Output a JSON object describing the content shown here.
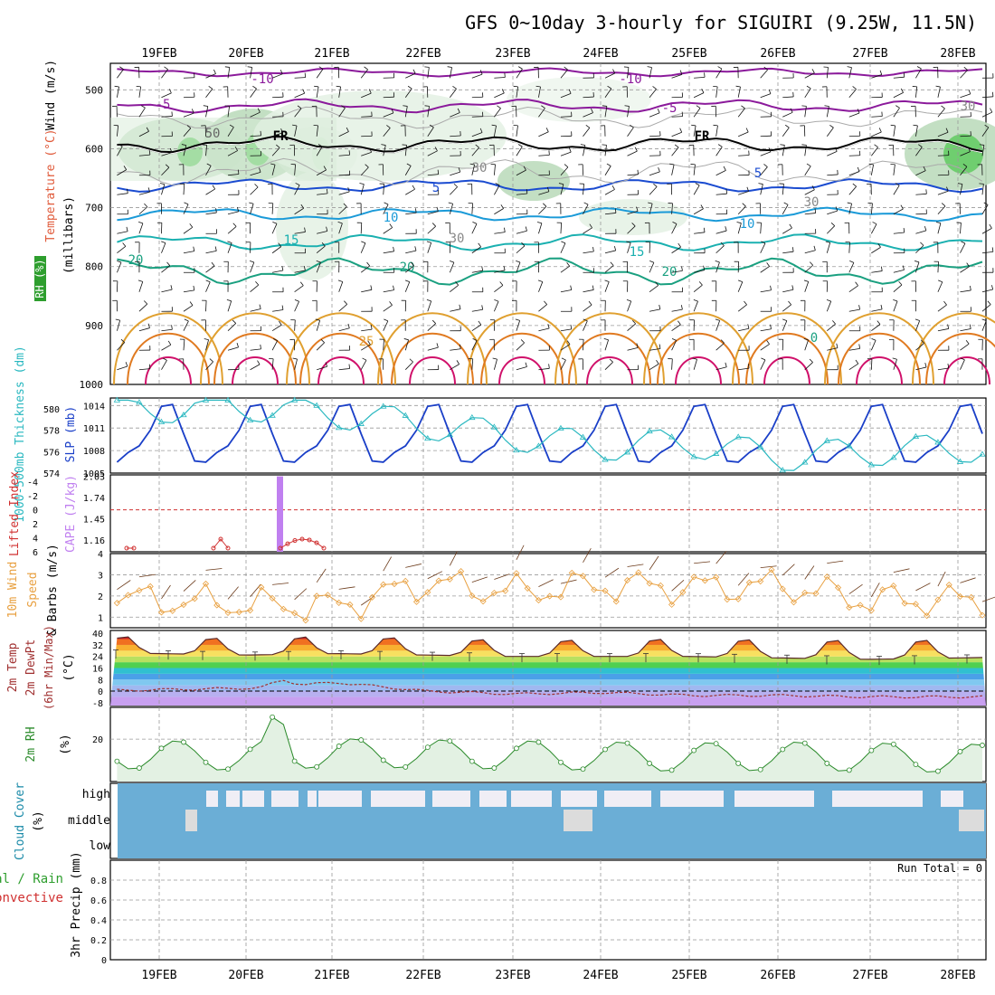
{
  "title": "GFS 0~10day 3-hourly for SIGUIRI (9.25W, 11.5N)",
  "dates": [
    "19FEB",
    "20FEB",
    "21FEB",
    "22FEB",
    "23FEB",
    "24FEB",
    "25FEB",
    "26FEB",
    "27FEB",
    "28FEB"
  ],
  "panels": {
    "upper": {
      "ylabel_parts": [
        {
          "text": "Wind (m/s)",
          "color": "#000000"
        },
        {
          "text": "Temperature (°C)",
          "color": "#e05a3a"
        },
        {
          "text": "RH (%)",
          "color": "#2e8b2e"
        }
      ],
      "ylabel2": "(millibars)",
      "yticks": [
        "500",
        "600",
        "700",
        "800",
        "900",
        "1000"
      ],
      "contour_labels": [
        {
          "text": "-10",
          "color": "#8b1a9b"
        },
        {
          "text": "-5",
          "color": "#8b1a9b"
        },
        {
          "text": "FR",
          "color": "#000000"
        },
        {
          "text": "5",
          "color": "#1a4bd0"
        },
        {
          "text": "10",
          "color": "#1a9ad8"
        },
        {
          "text": "15",
          "color": "#1ab0b0"
        },
        {
          "text": "20",
          "color": "#1aa080"
        },
        {
          "text": "25",
          "color": "#e0a030"
        },
        {
          "text": "30",
          "color": "#888888"
        },
        {
          "text": "50",
          "color": "#666666"
        },
        {
          "text": "0",
          "color": "#1aa080"
        }
      ]
    },
    "slp": {
      "ylabel_left": "1000-500mb Thickness (dm)",
      "ylabel_right": "SLP (mb)",
      "yticks_left": [
        "574",
        "576",
        "578",
        "580"
      ],
      "yticks_right": [
        "1005",
        "1008",
        "1011",
        "1014"
      ]
    },
    "cape": {
      "ylabel_left": "Lifted Index",
      "ylabel_right": "CAPE (J/kg)",
      "yticks_left": [
        "-4",
        "-2",
        "0",
        "2",
        "4",
        "6"
      ],
      "yticks_right": [
        "1.16",
        "1.45",
        "1.74",
        "2.03"
      ]
    },
    "wind10": {
      "ylabel_1": "10m Wind",
      "ylabel_2": "Speed",
      "ylabel_3": "& Barbs",
      "ylabel_unit": "(m/s)",
      "yticks": [
        "1",
        "2",
        "3",
        "4"
      ]
    },
    "temp2m": {
      "ylabel_1": "2m Temp",
      "ylabel_2": "2m DewPt",
      "ylabel_3": "(6hr Min/Max)",
      "ylabel_unit": "(°C)",
      "yticks": [
        "-8",
        "0",
        "8",
        "16",
        "24",
        "32",
        "40"
      ]
    },
    "rh2m": {
      "ylabel": "2m RH",
      "ylabel_unit": "(%)",
      "yticks": [
        "20"
      ]
    },
    "cloud": {
      "ylabel": "Cloud Cover",
      "ylabel_unit": "(%)",
      "levels": [
        "high",
        "middle",
        "low"
      ]
    },
    "precip": {
      "ylabel_1": "Total / Rain",
      "ylabel_2": "Convective",
      "ylabel_3": "3hr Precip (mm)",
      "yticks": [
        "0",
        "0.2",
        "0.4",
        "0.6",
        "0.8"
      ],
      "run_total": "Run Total = 0"
    }
  },
  "colors": {
    "slp": "#1a3fc8",
    "thickness": "#2ab8c0",
    "li": "#d03030",
    "cape": "#c080f0",
    "wind_speed": "#e8a040",
    "rh": "#2a8a2a",
    "cloud": "#6baed6",
    "cloud_clear": "#f0eef5"
  },
  "chart_data": [
    {
      "type": "line",
      "title": "1000-500mb Thickness (dm) / SLP (mb)",
      "x": [
        "19FEB",
        "20FEB",
        "21FEB",
        "22FEB",
        "23FEB",
        "24FEB",
        "25FEB",
        "26FEB",
        "27FEB",
        "28FEB"
      ],
      "series": [
        {
          "name": "SLP (mb)",
          "values": [
            1005.6,
            1010.5,
            1005.8,
            1012.6,
            1006.2,
            1010.8,
            1006.6,
            1012.8,
            1009.0,
            1010.0
          ]
        },
        {
          "name": "1000-500mb Thickness (dm)",
          "values": [
            580.0,
            580.2,
            579.5,
            578.5,
            577.4,
            576.5,
            576.8,
            575.5,
            576.0,
            576.3
          ]
        }
      ],
      "ylim_left": [
        574,
        581
      ],
      "ylim_right": [
        1005,
        1015
      ]
    },
    {
      "type": "line",
      "title": "10m Wind Speed (m/s)",
      "x": [
        "19FEB",
        "20FEB",
        "21FEB",
        "22FEB",
        "23FEB",
        "24FEB",
        "25FEB",
        "26FEB",
        "27FEB",
        "28FEB"
      ],
      "values": [
        1.8,
        1.6,
        1.5,
        2.6,
        2.2,
        2.5,
        2.4,
        2.5,
        1.8,
        1.8
      ],
      "ylim": [
        0.5,
        4
      ]
    },
    {
      "type": "area",
      "title": "2m Temp (°C)",
      "x": [
        "19FEB",
        "20FEB",
        "21FEB",
        "22FEB",
        "23FEB",
        "24FEB",
        "25FEB",
        "26FEB",
        "27FEB",
        "28FEB"
      ],
      "series": [
        {
          "name": "2m Temp max",
          "values": [
            38,
            37,
            39,
            37,
            36,
            36,
            37,
            36,
            36,
            36
          ]
        },
        {
          "name": "2m Temp min",
          "values": [
            26,
            25,
            26,
            25,
            24,
            24,
            24,
            23,
            22,
            23
          ]
        },
        {
          "name": "2m DewPt",
          "values": [
            1,
            2,
            6,
            0,
            -2,
            -1,
            -3,
            -3,
            -4,
            -4
          ]
        }
      ],
      "ylim": [
        -10,
        42
      ]
    },
    {
      "type": "line",
      "title": "2m RH (%)",
      "x": [
        "19FEB",
        "20FEB",
        "21FEB",
        "22FEB",
        "23FEB",
        "24FEB",
        "25FEB",
        "26FEB",
        "27FEB",
        "28FEB"
      ],
      "values": [
        19,
        18,
        21,
        20,
        19,
        18,
        17,
        18,
        17,
        16
      ],
      "ylim": [
        0,
        35
      ]
    },
    {
      "type": "bar",
      "title": "3hr Precip (mm)",
      "x": [
        "19FEB",
        "20FEB",
        "21FEB",
        "22FEB",
        "23FEB",
        "24FEB",
        "25FEB",
        "26FEB",
        "27FEB",
        "28FEB"
      ],
      "values": [
        0,
        0,
        0,
        0,
        0,
        0,
        0,
        0,
        0,
        0
      ],
      "ylim": [
        0,
        1
      ]
    }
  ]
}
